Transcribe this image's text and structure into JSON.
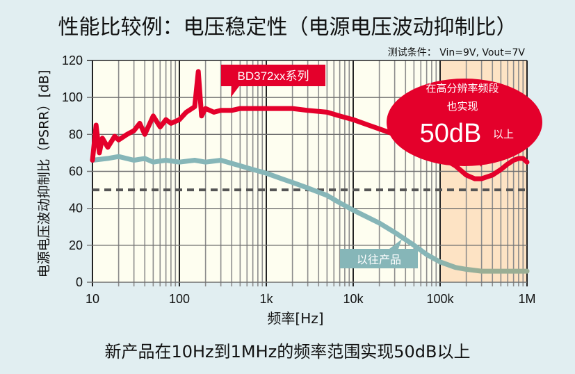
{
  "header": {
    "title": "性能比较例：电压稳定性（电源电压波动抑制比）",
    "test_condition": "测试条件： Vin=9V, Vout=7V"
  },
  "axes": {
    "ylabel": "电源电压波动抑制比（PSRR）[dB]",
    "xlabel": "频率[Hz]"
  },
  "callouts": {
    "new_series_label": "BD372xx系列",
    "old_series_label": "以往产品",
    "bubble_line1": "在高分辨率频段",
    "bubble_line2": "也实现",
    "bubble_big": "50dB",
    "bubble_suffix": "以上"
  },
  "footer": {
    "caption": "新产品在10Hz到1MHz的频率范围实现50dB以上"
  },
  "colors": {
    "background": "#e1eef1",
    "plot_bg": "#fefef0",
    "highlight_band": "#fde3c4",
    "new_series": "#e4002b",
    "old_series": "#86b6b8",
    "old_series_tail": "#9aae94",
    "reference_line": "#555555"
  },
  "chart_data": {
    "type": "line",
    "title": "性能比较例：电压稳定性（电源电压波动抑制比）",
    "subtitle": "测试条件： Vin=9V, Vout=7V",
    "xlabel": "频率[Hz]",
    "ylabel": "电源电压波动抑制比（PSRR）[dB]",
    "xscale": "log",
    "xlim": [
      10,
      1000000
    ],
    "ylim": [
      0,
      120
    ],
    "x_ticks": [
      10,
      100,
      1000,
      10000,
      100000,
      1000000
    ],
    "x_tick_labels": [
      "10",
      "100",
      "1k",
      "10k",
      "100k",
      "1M"
    ],
    "y_ticks": [
      0,
      20,
      40,
      60,
      80,
      100,
      120
    ],
    "y_tick_labels": [
      "0",
      "20",
      "40",
      "60",
      "80",
      "100",
      "120"
    ],
    "grid": true,
    "legend": "callouts",
    "highlight_region": {
      "x_from": 100000,
      "x_to": 1000000,
      "label": "在高分辨率频段 也实现 50dB以上"
    },
    "reference_line": {
      "y": 50,
      "style": "dashed"
    },
    "series": [
      {
        "name": "BD372xx系列",
        "x": [
          10,
          11,
          12,
          13,
          15,
          18,
          20,
          25,
          30,
          35,
          40,
          50,
          60,
          70,
          80,
          100,
          120,
          150,
          165,
          180,
          200,
          250,
          300,
          400,
          500,
          700,
          1000,
          1500,
          2000,
          3000,
          5000,
          7000,
          10000,
          15000,
          20000,
          30000,
          50000,
          70000,
          100000,
          150000,
          200000,
          250000,
          300000,
          400000,
          500000,
          600000,
          700000,
          800000,
          900000,
          1000000
        ],
        "values": [
          66,
          85,
          70,
          78,
          73,
          79,
          77,
          80,
          82,
          86,
          80,
          90,
          84,
          88,
          86,
          88,
          92,
          95,
          114,
          90,
          94,
          92,
          93,
          93,
          94,
          94,
          94,
          94,
          94,
          93,
          92,
          90,
          88,
          85,
          83,
          80,
          76,
          72,
          68,
          63,
          58,
          56,
          56,
          58,
          61,
          64,
          66,
          67,
          67,
          65
        ]
      },
      {
        "name": "以往产品",
        "x": [
          10,
          15,
          20,
          30,
          40,
          50,
          70,
          100,
          150,
          200,
          300,
          500,
          700,
          1000,
          1500,
          2000,
          3000,
          5000,
          7000,
          10000,
          20000,
          30000,
          50000,
          70000,
          100000,
          150000,
          200000,
          300000,
          500000,
          700000,
          1000000
        ],
        "values": [
          66,
          67,
          68,
          66,
          67,
          65,
          66,
          65,
          66,
          65,
          66,
          63,
          61,
          59,
          56,
          54,
          51,
          47,
          43,
          39,
          32,
          27,
          20,
          15,
          11,
          8,
          7,
          6,
          6,
          6,
          6
        ]
      }
    ]
  }
}
